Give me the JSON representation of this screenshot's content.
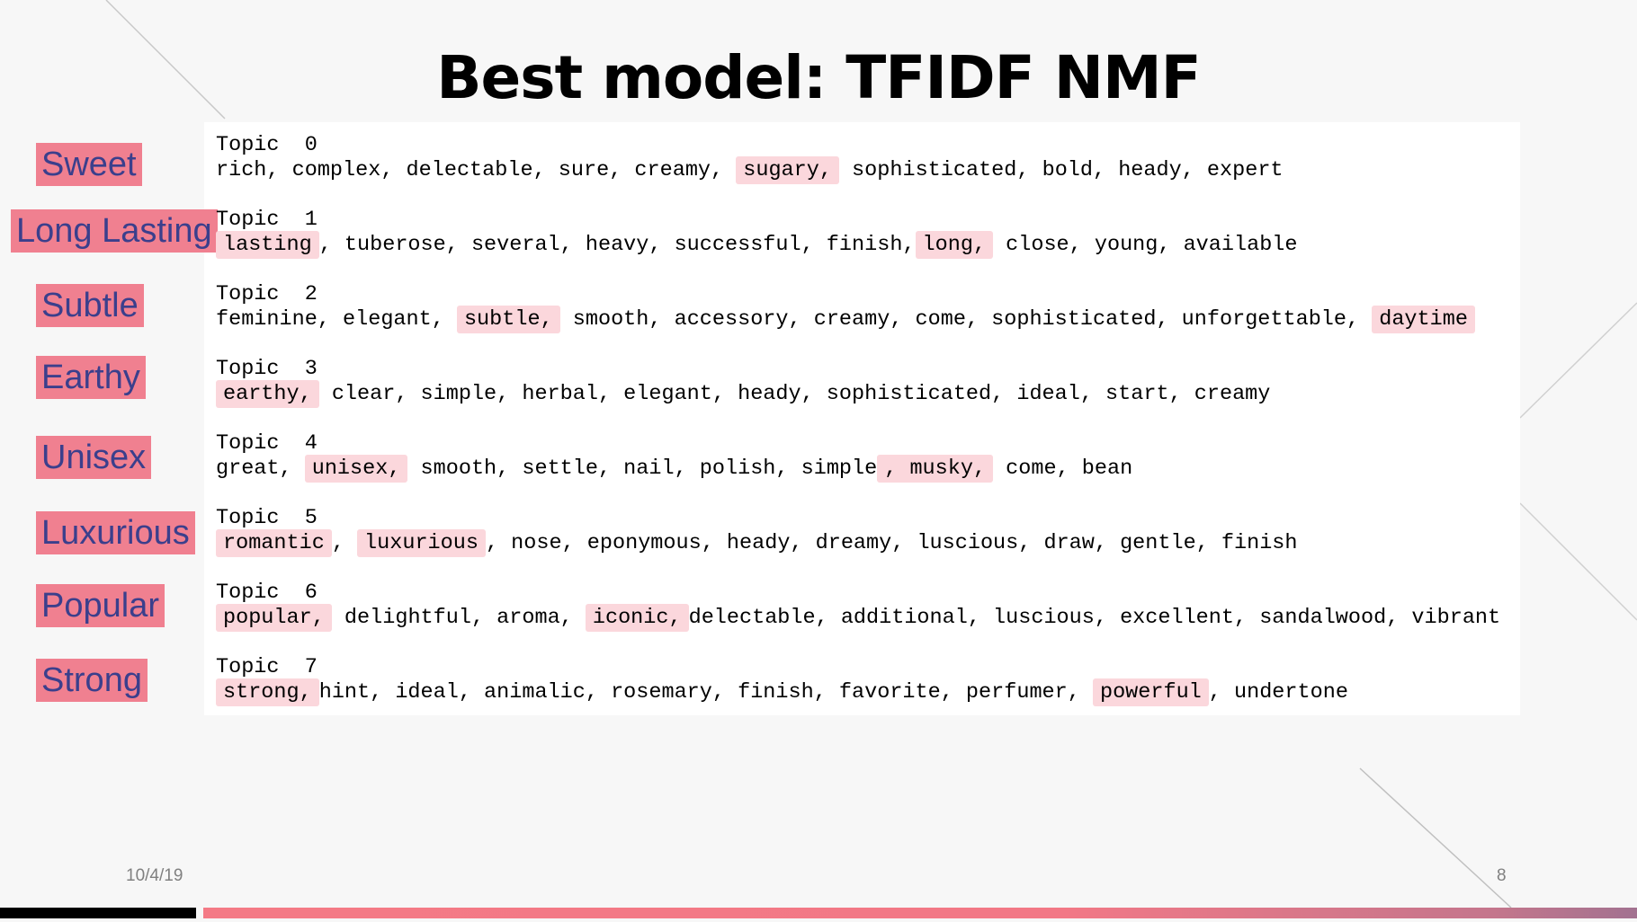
{
  "slide": {
    "title": "Best model: TFIDF NMF",
    "date": "10/4/19",
    "page_number": "8",
    "accent_color": "#f08090",
    "label_text_color": "#3b3f8c",
    "highlight_color": "#fbd7dc"
  },
  "labels": [
    "Sweet",
    "Long Lasting",
    "Subtle",
    "Earthy",
    "Unisex",
    "Luxurious",
    "Popular",
    "Strong"
  ],
  "topics": [
    {
      "header": "Topic  0",
      "words": [
        {
          "t": "rich, ",
          "hl": false
        },
        {
          "t": "complex, ",
          "hl": false
        },
        {
          "t": "delectable, ",
          "hl": false
        },
        {
          "t": "sure, ",
          "hl": false
        },
        {
          "t": "creamy, ",
          "hl": false
        },
        {
          "t": "sugary,",
          "hl": true
        },
        {
          "t": " sophisticated, bold, heady, expert",
          "hl": false
        }
      ]
    },
    {
      "header": "Topic  1",
      "words": [
        {
          "t": "lasting",
          "hl": true
        },
        {
          "t": ", tuberose, several, heavy, successful, finish,",
          "hl": false
        },
        {
          "t": "long,",
          "hl": true
        },
        {
          "t": " close, young, available",
          "hl": false
        }
      ]
    },
    {
      "header": "Topic  2",
      "words": [
        {
          "t": "feminine, elegant, ",
          "hl": false
        },
        {
          "t": "subtle,",
          "hl": true
        },
        {
          "t": " smooth, accessory, creamy, come, sophisticated, unforgettable, ",
          "hl": false
        },
        {
          "t": "daytime",
          "hl": true
        }
      ]
    },
    {
      "header": "Topic  3",
      "words": [
        {
          "t": "earthy,",
          "hl": true
        },
        {
          "t": " clear, simple, herbal, elegant, heady, sophisticated, ideal, start, creamy",
          "hl": false
        }
      ]
    },
    {
      "header": "Topic  4",
      "words": [
        {
          "t": "great, ",
          "hl": false
        },
        {
          "t": "unisex,",
          "hl": true
        },
        {
          "t": " smooth, settle, nail, polish, simple",
          "hl": false
        },
        {
          "t": ", musky,",
          "hl": true
        },
        {
          "t": " come, bean",
          "hl": false
        }
      ]
    },
    {
      "header": "Topic  5",
      "words": [
        {
          "t": "romantic",
          "hl": true
        },
        {
          "t": ", ",
          "hl": false
        },
        {
          "t": "luxurious",
          "hl": true
        },
        {
          "t": ", nose, eponymous, heady, dreamy, luscious, draw, gentle, finish",
          "hl": false
        }
      ]
    },
    {
      "header": "Topic  6",
      "words": [
        {
          "t": "popular,",
          "hl": true
        },
        {
          "t": " delightful, aroma, ",
          "hl": false
        },
        {
          "t": "iconic,",
          "hl": true
        },
        {
          "t": "delectable, additional, luscious, excellent, sandalwood, vibrant",
          "hl": false
        }
      ]
    },
    {
      "header": "Topic  7",
      "words": [
        {
          "t": "strong,",
          "hl": true
        },
        {
          "t": "hint, ideal, animalic, rosemary, finish, favorite, perfumer, ",
          "hl": false
        },
        {
          "t": "powerful",
          "hl": true
        },
        {
          "t": ", undertone",
          "hl": false
        }
      ]
    }
  ]
}
